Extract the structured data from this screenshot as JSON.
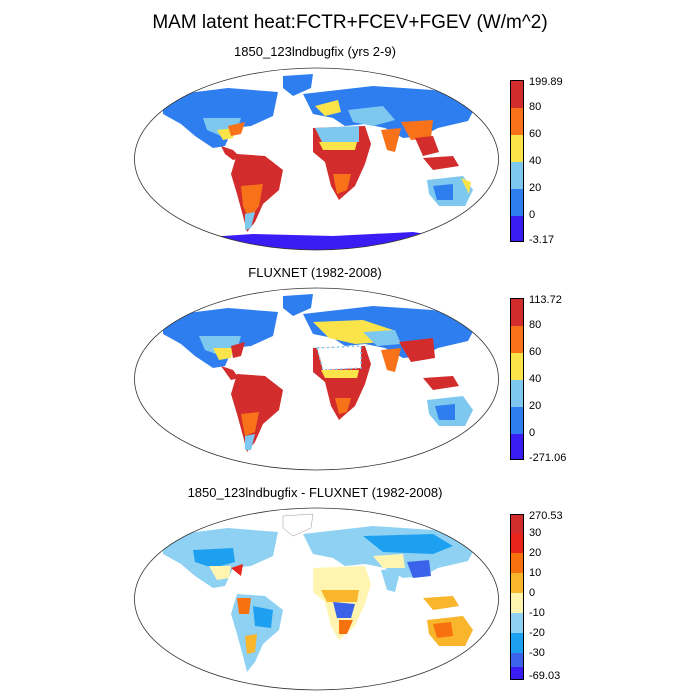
{
  "title": "MAM latent heat:FCTR+FCEV+FGEV (W/m^2)",
  "panels": [
    {
      "id": "model",
      "subtitle": "1850_123lndbugfix (yrs 2-9)",
      "colorbar": {
        "colors": [
          "#3a1df5",
          "#2f7ef0",
          "#7ec8f0",
          "#fbe34a",
          "#f87219",
          "#d22c2c"
        ],
        "labels": [
          "-3.17",
          "0",
          "20",
          "40",
          "60",
          "80",
          "199.89"
        ]
      }
    },
    {
      "id": "obs",
      "subtitle": "FLUXNET (1982-2008)",
      "colorbar": {
        "colors": [
          "#3a1df5",
          "#2f7ef0",
          "#7ec8f0",
          "#fbe34a",
          "#f87219",
          "#d22c2c"
        ],
        "labels": [
          "-271.06",
          "0",
          "20",
          "40",
          "60",
          "80",
          "113.72"
        ]
      }
    },
    {
      "id": "diff",
      "subtitle": "1850_123lndbugfix - FLUXNET (1982-2008)",
      "colorbar": {
        "colors": [
          "#3a1df5",
          "#3b63e9",
          "#1ea0f0",
          "#8fd1f2",
          "#fff5b0",
          "#f9b52b",
          "#f7720e",
          "#e8241c",
          "#d12c2c"
        ],
        "labels": [
          "-69.03",
          "-30",
          "-20",
          "-10",
          "0",
          "10",
          "20",
          "30",
          "270.53"
        ]
      }
    }
  ]
}
